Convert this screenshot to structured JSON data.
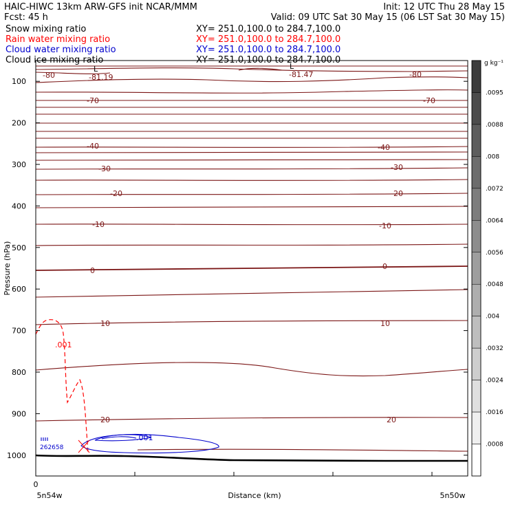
{
  "header": {
    "title": "HAIC-HIWC 13km ARW-GFS init   NCAR/MMM",
    "init": "Init: 12 UTC Thu 28 May 15",
    "fcst": "Fcst:   45 h",
    "valid": "Valid: 09 UTC Sat 30 May 15 (06 LST Sat 30 May 15)"
  },
  "fields": [
    {
      "name": "Snow mixing ratio",
      "xy": "XY= 251.0,100.0 to 284.7,100.0",
      "color": "#000000"
    },
    {
      "name": "Rain water mixing ratio",
      "xy": "XY= 251.0,100.0 to 284.7,100.0",
      "color": "#ff0000"
    },
    {
      "name": "Cloud water mixing ratio",
      "xy": "XY= 251.0,100.0 to 284.7,100.0",
      "color": "#0000cc"
    },
    {
      "name": "Cloud ice mixing ratio",
      "xy": "XY= 251.0,100.0 to 284.7,100.0",
      "color": "#000000"
    }
  ],
  "colors": {
    "temperature": "#7a1414",
    "rain": "#ff0000",
    "cloud_water": "#0000cc",
    "terrain": "#000000"
  },
  "chart_data": {
    "type": "cross-section",
    "xlabel": "Distance (km)",
    "ylabel": "Pressure (hPa)",
    "x_start_label": "0",
    "x_endpoints": [
      "5n54w",
      "5n50w"
    ],
    "yticks": [
      100,
      200,
      300,
      400,
      500,
      600,
      700,
      800,
      900,
      1000
    ],
    "ylim": [
      50,
      1050
    ],
    "temperature_contours": [
      {
        "label": "-80",
        "values": [
          -80
        ]
      },
      {
        "label": "-81.19",
        "values": [
          -81.19
        ]
      },
      {
        "label": "-81.47",
        "values": [
          -81.47
        ]
      },
      {
        "label": "-70",
        "values": [
          -70
        ]
      },
      {
        "label": "-40",
        "values": [
          -40
        ]
      },
      {
        "label": "-30",
        "values": [
          -30
        ]
      },
      {
        "label": "-20",
        "values": [
          -20
        ]
      },
      {
        "label": "-10",
        "values": [
          -10
        ]
      },
      {
        "label": "0",
        "values": [
          0
        ]
      },
      {
        "label": "10",
        "values": [
          10
        ]
      },
      {
        "label": "20",
        "values": [
          20
        ]
      }
    ],
    "low_markers": [
      "L",
      "L"
    ],
    "rain_label": ".001",
    "cloud_water_label": ".001",
    "cloud_water_small_label": "262658",
    "colorbar": {
      "unit": "g kg⁻¹",
      "ticks": [
        ".0095",
        ".0088",
        ".008",
        ".0072",
        ".0064",
        ".0056",
        ".0048",
        ".004",
        ".0032",
        ".0024",
        ".0016",
        ".0008"
      ],
      "min": 0,
      "max": 0.01
    }
  }
}
